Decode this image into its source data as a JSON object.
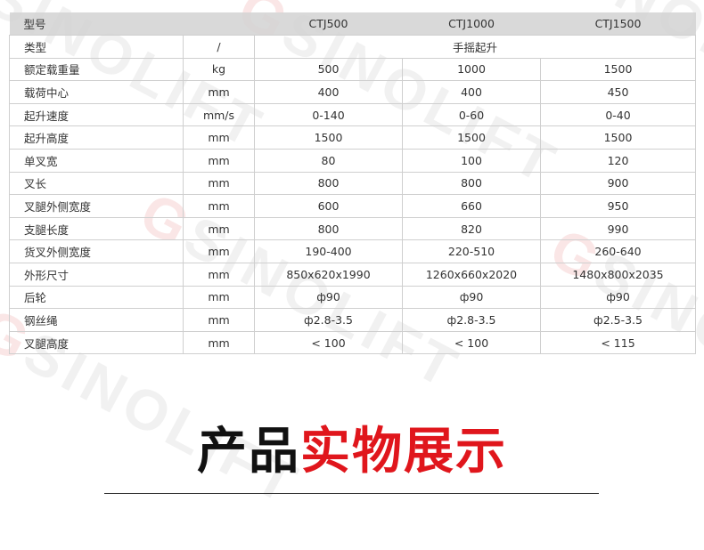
{
  "watermark": "SINOLIFT",
  "table": {
    "header": {
      "label": "型号",
      "models": [
        "CTJ500",
        "CTJ1000",
        "CTJ1500"
      ]
    },
    "type_row": {
      "label": "类型",
      "unit": "/",
      "value": "手摇起升"
    },
    "rows": [
      {
        "label": "额定载重量",
        "unit": "kg",
        "values": [
          "500",
          "1000",
          "1500"
        ]
      },
      {
        "label": "载荷中心",
        "unit": "mm",
        "values": [
          "400",
          "400",
          "450"
        ]
      },
      {
        "label": "起升速度",
        "unit": "mm/s",
        "values": [
          "0-140",
          "0-60",
          "0-40"
        ]
      },
      {
        "label": "起升高度",
        "unit": "mm",
        "values": [
          "1500",
          "1500",
          "1500"
        ]
      },
      {
        "label": "单叉宽",
        "unit": "mm",
        "values": [
          "80",
          "100",
          "120"
        ]
      },
      {
        "label": "叉长",
        "unit": "mm",
        "values": [
          "800",
          "800",
          "900"
        ]
      },
      {
        "label": "叉腿外侧宽度",
        "unit": "mm",
        "values": [
          "600",
          "660",
          "950"
        ]
      },
      {
        "label": "支腿长度",
        "unit": "mm",
        "values": [
          "800",
          "820",
          "990"
        ]
      },
      {
        "label": "货叉外侧宽度",
        "unit": "mm",
        "values": [
          "190-400",
          "220-510",
          "260-640"
        ]
      },
      {
        "label": "外形尺寸",
        "unit": "mm",
        "values": [
          "850x620x1990",
          "1260x660x2020",
          "1480x800x2035"
        ]
      },
      {
        "label": "后轮",
        "unit": "mm",
        "values": [
          "ф90",
          "ф90",
          "ф90"
        ]
      },
      {
        "label": "钢丝绳",
        "unit": "mm",
        "values": [
          "ф2.8-3.5",
          "ф2.8-3.5",
          "ф2.5-3.5"
        ]
      },
      {
        "label": "叉腿高度",
        "unit": "mm",
        "values": [
          "< 100",
          "< 100",
          "< 115"
        ]
      }
    ]
  },
  "section_title": {
    "black": "产品",
    "red": "实物展示"
  },
  "colors": {
    "accent": "#e0161c"
  }
}
